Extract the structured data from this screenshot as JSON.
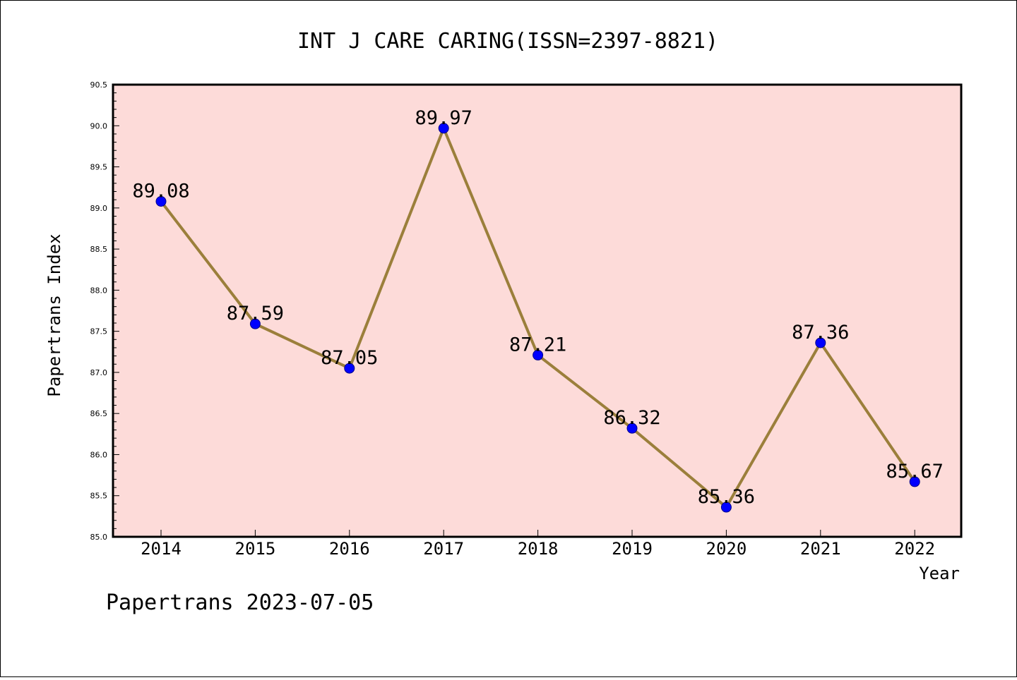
{
  "chart_data": {
    "type": "line",
    "title": "INT J CARE CARING(ISSN=2397-8821)",
    "xlabel": "Year",
    "ylabel": "Papertrans Index",
    "ylim": [
      85.0,
      90.5
    ],
    "y_ticks": [
      "85.0",
      "85.5",
      "86.0",
      "86.5",
      "87.0",
      "87.5",
      "88.0",
      "88.5",
      "89.0",
      "89.5",
      "90.0",
      "90.5"
    ],
    "categories": [
      "2014",
      "2015",
      "2016",
      "2017",
      "2018",
      "2019",
      "2020",
      "2021",
      "2022"
    ],
    "series": [
      {
        "values": [
          89.08,
          87.59,
          87.05,
          89.97,
          87.21,
          86.32,
          85.36,
          87.36,
          85.67
        ],
        "labels": [
          "89.08",
          "87.59",
          "87.05",
          "89.97",
          "87.21",
          "86.32",
          "85.36",
          "87.36",
          "85.67"
        ]
      }
    ],
    "grid": false,
    "colors": {
      "plot_background": "#FDDBD9",
      "line": "#9B7F3B",
      "marker": "#0000FF"
    }
  },
  "footer": "Papertrans 2023-07-05"
}
